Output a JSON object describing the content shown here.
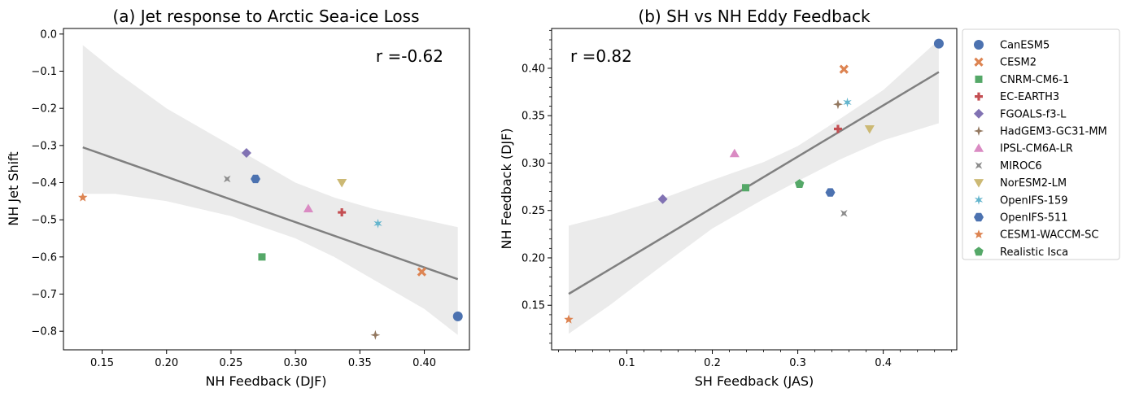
{
  "colors": {
    "blue": "#4c72b0",
    "orange": "#dd8452",
    "green": "#55a868",
    "red": "#c44e52",
    "purple": "#8172b3",
    "brown": "#937860",
    "pink": "#da8bc3",
    "gray": "#8c8c8c",
    "olive": "#ccb974",
    "cyan": "#64b5cd",
    "fit_line": "#808080",
    "band": "#ebebeb"
  },
  "legend": {
    "placement": "outside-right",
    "entries": [
      {
        "name": "CanESM5",
        "marker": "circle",
        "color": "#4c72b0"
      },
      {
        "name": "CESM2",
        "marker": "x",
        "color": "#dd8452"
      },
      {
        "name": "CNRM-CM6-1",
        "marker": "square",
        "color": "#55a868"
      },
      {
        "name": "EC-EARTH3",
        "marker": "plus",
        "color": "#c44e52"
      },
      {
        "name": "FGOALS-f3-L",
        "marker": "diamond",
        "color": "#8172b3"
      },
      {
        "name": "HadGEM3-GC31-MM",
        "marker": "star4",
        "color": "#937860"
      },
      {
        "name": "IPSL-CM6A-LR",
        "marker": "triangle-up",
        "color": "#da8bc3"
      },
      {
        "name": "MIROC6",
        "marker": "xstar",
        "color": "#8c8c8c"
      },
      {
        "name": "NorESM2-LM",
        "marker": "triangle-down",
        "color": "#ccb974"
      },
      {
        "name": "OpenIFS-159",
        "marker": "star6",
        "color": "#64b5cd"
      },
      {
        "name": "OpenIFS-511",
        "marker": "hexagon",
        "color": "#4c72b0"
      },
      {
        "name": "CESM1-WACCM-SC",
        "marker": "star5",
        "color": "#dd8452"
      },
      {
        "name": "Realistic Isca",
        "marker": "pentagon",
        "color": "#55a868"
      }
    ]
  },
  "chart_data": [
    {
      "type": "scatter",
      "title": "(a) Jet response to Arctic Sea-ice Loss",
      "xlabel": "NH Feedback (DJF)",
      "ylabel": "NH Jet Shift",
      "xlim": [
        0.12,
        0.435
      ],
      "ylim": [
        -0.85,
        0.015
      ],
      "xticks": [
        0.15,
        0.2,
        0.25,
        0.3,
        0.35,
        0.4
      ],
      "xtick_labels": [
        "0.15",
        "0.20",
        "0.25",
        "0.30",
        "0.35",
        "0.40"
      ],
      "yticks": [
        0.0,
        -0.1,
        -0.2,
        -0.3,
        -0.4,
        -0.5,
        -0.6,
        -0.7,
        -0.8
      ],
      "ytick_labels": [
        "0.0",
        "−0.1",
        "−0.2",
        "−0.3",
        "−0.4",
        "−0.5",
        "−0.6",
        "−0.7",
        "−0.8"
      ],
      "annotation": "r =-0.62",
      "annotation_placement": "top-right",
      "points": [
        {
          "model": "CanESM5",
          "x": 0.426,
          "y": -0.76
        },
        {
          "model": "CESM2",
          "x": 0.398,
          "y": -0.64
        },
        {
          "model": "CNRM-CM6-1",
          "x": 0.274,
          "y": -0.6
        },
        {
          "model": "EC-EARTH3",
          "x": 0.336,
          "y": -0.48
        },
        {
          "model": "FGOALS-f3-L",
          "x": 0.262,
          "y": -0.32
        },
        {
          "model": "HadGEM3-GC31-MM",
          "x": 0.362,
          "y": -0.81
        },
        {
          "model": "IPSL-CM6A-LR",
          "x": 0.31,
          "y": -0.47
        },
        {
          "model": "MIROC6",
          "x": 0.247,
          "y": -0.39
        },
        {
          "model": "NorESM2-LM",
          "x": 0.336,
          "y": -0.4
        },
        {
          "model": "OpenIFS-159",
          "x": 0.364,
          "y": -0.51
        },
        {
          "model": "OpenIFS-511",
          "x": 0.269,
          "y": -0.39
        },
        {
          "model": "CESM1-WACCM-SC",
          "x": 0.135,
          "y": -0.44
        }
      ],
      "fit": {
        "x": [
          0.135,
          0.426
        ],
        "y": [
          -0.305,
          -0.66
        ]
      },
      "band": {
        "x": [
          0.135,
          0.16,
          0.2,
          0.25,
          0.3,
          0.33,
          0.36,
          0.4,
          0.426
        ],
        "upper": [
          -0.03,
          -0.1,
          -0.2,
          -0.3,
          -0.4,
          -0.44,
          -0.47,
          -0.5,
          -0.52
        ],
        "lower": [
          -0.43,
          -0.43,
          -0.45,
          -0.49,
          -0.55,
          -0.6,
          -0.66,
          -0.74,
          -0.81
        ]
      }
    },
    {
      "type": "scatter",
      "title": "(b) SH vs NH Eddy Feedback",
      "xlabel": "SH Feedback (JAS)",
      "ylabel": "NH Feedback (DJF)",
      "xlim": [
        0.012,
        0.486
      ],
      "ylim": [
        0.103,
        0.442
      ],
      "xticks": [
        0.1,
        0.2,
        0.3,
        0.4
      ],
      "xtick_labels": [
        "0.1",
        "0.2",
        "0.3",
        "0.4"
      ],
      "yticks": [
        0.15,
        0.2,
        0.25,
        0.3,
        0.35,
        0.4
      ],
      "ytick_labels": [
        "0.15",
        "0.20",
        "0.25",
        "0.30",
        "0.35",
        "0.40"
      ],
      "annotation": "r =0.82",
      "annotation_placement": "top-left",
      "points": [
        {
          "model": "CanESM5",
          "x": 0.465,
          "y": 0.426
        },
        {
          "model": "CESM2",
          "x": 0.354,
          "y": 0.399
        },
        {
          "model": "CNRM-CM6-1",
          "x": 0.239,
          "y": 0.274
        },
        {
          "model": "EC-EARTH3",
          "x": 0.347,
          "y": 0.336
        },
        {
          "model": "FGOALS-f3-L",
          "x": 0.142,
          "y": 0.262
        },
        {
          "model": "HadGEM3-GC31-MM",
          "x": 0.347,
          "y": 0.362
        },
        {
          "model": "IPSL-CM6A-LR",
          "x": 0.226,
          "y": 0.31
        },
        {
          "model": "MIROC6",
          "x": 0.354,
          "y": 0.247
        },
        {
          "model": "NorESM2-LM",
          "x": 0.384,
          "y": 0.336
        },
        {
          "model": "OpenIFS-159",
          "x": 0.358,
          "y": 0.364
        },
        {
          "model": "OpenIFS-511",
          "x": 0.338,
          "y": 0.269
        },
        {
          "model": "CESM1-WACCM-SC",
          "x": 0.032,
          "y": 0.135
        },
        {
          "model": "Realistic Isca",
          "x": 0.302,
          "y": 0.278
        }
      ],
      "fit": {
        "x": [
          0.032,
          0.465
        ],
        "y": [
          0.162,
          0.396
        ]
      },
      "band": {
        "x": [
          0.032,
          0.08,
          0.14,
          0.2,
          0.26,
          0.3,
          0.35,
          0.4,
          0.465
        ],
        "upper": [
          0.234,
          0.245,
          0.262,
          0.282,
          0.301,
          0.318,
          0.347,
          0.377,
          0.43
        ],
        "lower": [
          0.12,
          0.15,
          0.191,
          0.231,
          0.262,
          0.281,
          0.304,
          0.324,
          0.342
        ]
      }
    }
  ]
}
